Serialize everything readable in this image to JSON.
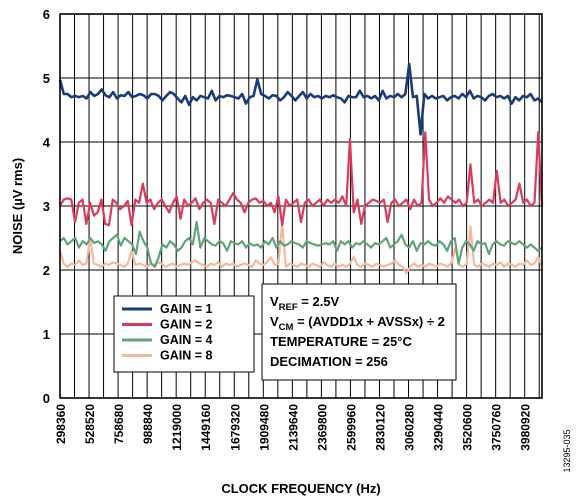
{
  "chart_data": {
    "type": "line",
    "xlabel": "CLOCK FREQUENCY (Hz)",
    "ylabel": "NOISE (µV rms)",
    "ylim": [
      0,
      6
    ],
    "yticks": [
      "0",
      "1",
      "2",
      "3",
      "4",
      "5",
      "6"
    ],
    "xlim": [
      298360,
      4118000
    ],
    "grid": true,
    "legend_position": "lower-left",
    "xtick_labels": [
      "298360",
      "528520",
      "758680",
      "988840",
      "1219000",
      "1449160",
      "1679320",
      "1909480",
      "2139640",
      "2369800",
      "2599960",
      "2830120",
      "3060280",
      "3290440",
      "3520600",
      "3750760",
      "3980920"
    ],
    "series": [
      {
        "name": "GAIN = 1",
        "color": "#1b3a7a",
        "values": [
          4.97,
          4.75,
          4.75,
          4.7,
          4.72,
          4.7,
          4.72,
          4.68,
          4.78,
          4.72,
          4.75,
          4.82,
          4.73,
          4.7,
          4.78,
          4.68,
          4.73,
          4.72,
          4.78,
          4.7,
          4.72,
          4.75,
          4.73,
          4.68,
          4.75,
          4.75,
          4.72,
          4.65,
          4.72,
          4.78,
          4.75,
          4.68,
          4.62,
          4.72,
          4.58,
          4.7,
          4.65,
          4.72,
          4.7,
          4.68,
          4.8,
          4.65,
          4.72,
          4.7,
          4.73,
          4.72,
          4.7,
          4.68,
          4.75,
          4.6,
          4.7,
          4.72,
          4.98,
          4.75,
          4.72,
          4.68,
          4.73,
          4.72,
          4.65,
          4.7,
          4.78,
          4.72,
          4.65,
          4.72,
          4.78,
          4.68,
          4.75,
          4.7,
          4.72,
          4.68,
          4.72,
          4.7,
          4.73,
          4.7,
          4.68,
          4.62,
          4.72,
          4.7,
          4.7,
          4.8,
          4.7,
          4.72,
          4.68,
          4.72,
          4.65,
          4.8,
          4.68,
          4.72,
          4.7,
          4.75,
          4.7,
          4.75,
          5.22,
          4.7,
          4.72,
          4.12,
          4.75,
          4.68,
          4.72,
          4.68,
          4.7,
          4.72,
          4.65,
          4.7,
          4.72,
          4.68,
          4.75,
          4.7,
          4.8,
          4.68,
          4.72,
          4.7,
          4.65,
          4.72,
          4.75,
          4.7,
          4.72,
          4.68,
          4.72,
          4.6,
          4.7,
          4.65,
          4.72,
          4.7,
          4.75,
          4.65,
          4.68,
          4.62
        ]
      },
      {
        "name": "GAIN = 2",
        "color": "#dc3a5a",
        "values": [
          3.0,
          3.1,
          3.12,
          3.1,
          2.75,
          3.05,
          3.1,
          2.72,
          3.05,
          2.85,
          2.9,
          3.1,
          2.72,
          2.7,
          3.1,
          3.05,
          2.95,
          3.0,
          3.08,
          2.7,
          3.1,
          3.05,
          3.35,
          3.05,
          3.1,
          2.95,
          3.05,
          3.1,
          3.0,
          2.9,
          3.05,
          3.15,
          2.8,
          3.1,
          3.0,
          3.05,
          3.12,
          2.95,
          3.05,
          3.1,
          3.05,
          2.72,
          3.1,
          3.05,
          3.0,
          3.1,
          3.2,
          3.1,
          3.05,
          2.9,
          3.05,
          3.1,
          3.12,
          3.05,
          3.08,
          3.0,
          3.05,
          2.9,
          3.15,
          2.7,
          3.1,
          3.0,
          3.05,
          3.1,
          2.75,
          3.05,
          3.1,
          3.0,
          3.05,
          3.1,
          3.0,
          3.1,
          3.05,
          3.1,
          3.05,
          3.15,
          3.0,
          4.05,
          2.9,
          3.1,
          2.72,
          3.0,
          3.05,
          3.1,
          3.08,
          3.05,
          3.1,
          2.75,
          3.05,
          3.1,
          3.0,
          3.05,
          3.1,
          2.95,
          3.1,
          3.0,
          3.05,
          4.15,
          3.1,
          3.0,
          3.05,
          3.12,
          3.05,
          3.15,
          3.1,
          3.05,
          3.1,
          3.0,
          3.05,
          3.65,
          3.05,
          3.1,
          3.0,
          3.05,
          3.1,
          3.05,
          3.55,
          3.05,
          3.1,
          3.0,
          3.05,
          3.1,
          3.35,
          3.05,
          3.1,
          3.0,
          3.05,
          4.15,
          3.0
        ]
      },
      {
        "name": "GAIN = 4",
        "color": "#5fa37a",
        "values": [
          2.45,
          2.5,
          2.4,
          2.45,
          2.5,
          2.35,
          2.45,
          2.4,
          2.5,
          2.42,
          2.45,
          2.4,
          2.3,
          2.45,
          2.5,
          2.55,
          2.38,
          2.5,
          2.45,
          2.4,
          2.25,
          2.6,
          2.45,
          2.35,
          2.1,
          2.05,
          2.2,
          2.4,
          2.35,
          2.45,
          2.4,
          2.3,
          2.35,
          2.45,
          2.5,
          2.4,
          2.75,
          2.35,
          2.5,
          2.45,
          2.4,
          2.38,
          2.45,
          2.42,
          2.3,
          2.45,
          2.42,
          2.4,
          2.45,
          2.35,
          2.42,
          2.38,
          2.4,
          2.35,
          2.45,
          2.4,
          2.5,
          2.35,
          2.45,
          2.38,
          2.4,
          2.45,
          2.42,
          2.4,
          2.35,
          2.45,
          2.42,
          2.4,
          2.38,
          2.4,
          2.42,
          2.4,
          2.45,
          2.3,
          2.45,
          2.4,
          2.45,
          2.35,
          2.42,
          2.4,
          2.45,
          2.4,
          2.35,
          2.42,
          2.4,
          2.45,
          2.5,
          2.35,
          2.4,
          2.45,
          2.55,
          2.4,
          2.35,
          2.45,
          2.3,
          2.42,
          2.4,
          2.45,
          2.4,
          2.38,
          2.45,
          2.4,
          2.3,
          2.45,
          2.5,
          2.1,
          2.35,
          2.45,
          2.4,
          2.3,
          2.45,
          2.4,
          2.42,
          2.25,
          2.4,
          2.45,
          2.4,
          2.38,
          2.45,
          2.42,
          2.4,
          2.45,
          2.4,
          2.35,
          2.4,
          2.35,
          2.3,
          2.35
        ]
      },
      {
        "name": "GAIN = 8",
        "color": "#f5b89a",
        "values": [
          2.3,
          2.1,
          2.05,
          2.1,
          2.08,
          2.15,
          2.08,
          2.1,
          2.5,
          2.1,
          2.08,
          2.05,
          2.1,
          2.08,
          2.12,
          2.1,
          2.08,
          2.05,
          2.1,
          2.3,
          2.08,
          2.1,
          2.08,
          2.05,
          2.1,
          2.08,
          2.12,
          2.1,
          2.05,
          2.08,
          2.1,
          2.05,
          2.08,
          2.1,
          2.08,
          2.12,
          2.15,
          2.1,
          2.08,
          2.05,
          2.1,
          2.08,
          2.12,
          2.05,
          2.1,
          2.08,
          2.1,
          2.05,
          2.08,
          2.1,
          2.08,
          2.05,
          2.15,
          2.1,
          2.08,
          2.12,
          2.2,
          2.08,
          2.1,
          2.72,
          2.05,
          2.1,
          2.08,
          2.05,
          2.1,
          2.08,
          2.05,
          2.1,
          2.08,
          2.05,
          2.12,
          2.08,
          2.05,
          2.1,
          2.05,
          2.08,
          2.05,
          2.1,
          2.2,
          2.08,
          2.05,
          2.1,
          2.08,
          2.05,
          2.1,
          2.08,
          2.05,
          2.08,
          2.1,
          2.15,
          2.08,
          2.05,
          1.95,
          2.05,
          2.1,
          2.05,
          2.08,
          2.05,
          2.1,
          2.08,
          2.05,
          2.1,
          2.08,
          2.05,
          2.12,
          2.35,
          2.08,
          2.05,
          2.1,
          2.68,
          2.08,
          2.05,
          2.1,
          2.08,
          2.05,
          2.1,
          2.08,
          2.12,
          2.05,
          2.1,
          2.08,
          2.05,
          2.1,
          2.08,
          2.15,
          2.08,
          2.1,
          2.2,
          2.05
        ]
      }
    ],
    "annotations": [
      {
        "main": "V",
        "sub": "REF",
        "rest": " = 2.5V"
      },
      {
        "main": "V",
        "sub": "CM",
        "rest": " = (AVDD1x + AVSSx) ÷ 2"
      },
      {
        "main": "TEMPERATURE = 25°C",
        "sub": "",
        "rest": ""
      },
      {
        "main": "DECIMATION = 256",
        "sub": "",
        "rest": ""
      }
    ],
    "figure_id": "13295-035"
  }
}
